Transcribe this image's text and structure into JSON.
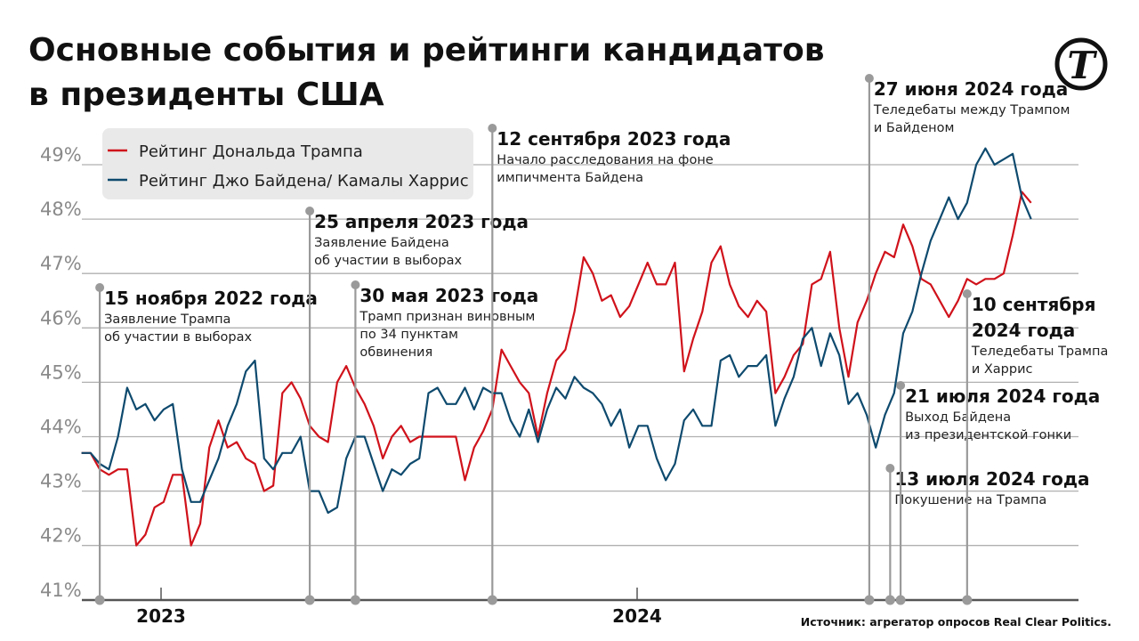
{
  "title_lines": [
    "Основные события и рейтинги кандидатов",
    "в президенты США"
  ],
  "source": "Источник: агрегатор опросов Real Clear Politics.",
  "logo_letter": "Т",
  "chart_data": {
    "type": "line",
    "title": "Основные события и рейтинги кандидатов в президенты США",
    "xlabel": "",
    "ylabel": "",
    "ylim": [
      41,
      49.5
    ],
    "yticks": [
      41,
      42,
      43,
      44,
      45,
      46,
      47,
      48,
      49
    ],
    "ytick_labels": [
      "41%",
      "42%",
      "43%",
      "44%",
      "45%",
      "46%",
      "47%",
      "48%",
      "49%"
    ],
    "xtick_labels": [
      {
        "date": "2023-07-01",
        "label": "2023"
      },
      {
        "date": "2024-07-01",
        "label": "2024"
      }
    ],
    "grid": true,
    "legend_position": "top-left",
    "x_start": "2022-11-01",
    "x_step_days": 7,
    "series": [
      {
        "name": "Рейтинг Дональда Трампа",
        "color": "#d0121b",
        "values": [
          43.7,
          43.7,
          43.4,
          43.3,
          43.4,
          43.4,
          42.0,
          42.2,
          42.7,
          42.8,
          43.3,
          43.3,
          42.0,
          42.4,
          43.8,
          44.3,
          43.8,
          43.9,
          43.6,
          43.5,
          43.0,
          43.1,
          44.8,
          45.0,
          44.7,
          44.2,
          44.0,
          43.9,
          45.0,
          45.3,
          44.9,
          44.6,
          44.2,
          43.6,
          44.0,
          44.2,
          43.9,
          44.0,
          44.0,
          44.0,
          44.0,
          44.0,
          43.2,
          43.8,
          44.1,
          44.5,
          45.6,
          45.3,
          45.0,
          44.8,
          44.0,
          44.8,
          45.4,
          45.6,
          46.3,
          47.3,
          47.0,
          46.5,
          46.6,
          46.2,
          46.4,
          46.8,
          47.2,
          46.8,
          46.8,
          47.2,
          45.2,
          45.8,
          46.3,
          47.2,
          47.5,
          46.8,
          46.4,
          46.2,
          46.5,
          46.3,
          44.8,
          45.1,
          45.5,
          45.7,
          46.8,
          46.9,
          47.4,
          46.0,
          45.1,
          46.1,
          46.5,
          47.0,
          47.4,
          47.3,
          47.9,
          47.5,
          46.9,
          46.8,
          46.5,
          46.2,
          46.5,
          46.9,
          46.8,
          46.9,
          46.9,
          47.0,
          47.7,
          48.5,
          48.3
        ]
      },
      {
        "name": "Рейтинг Джо Байдена/ Камалы Харрис",
        "color": "#0e4a6e",
        "values": [
          43.7,
          43.7,
          43.5,
          43.4,
          44.0,
          44.9,
          44.5,
          44.6,
          44.3,
          44.5,
          44.6,
          43.4,
          42.8,
          42.8,
          43.2,
          43.6,
          44.2,
          44.6,
          45.2,
          45.4,
          43.6,
          43.4,
          43.7,
          43.7,
          44.0,
          43.0,
          43.0,
          42.6,
          42.7,
          43.6,
          44.0,
          44.0,
          43.5,
          43.0,
          43.4,
          43.3,
          43.5,
          43.6,
          44.8,
          44.9,
          44.6,
          44.6,
          44.9,
          44.5,
          44.9,
          44.8,
          44.8,
          44.3,
          44.0,
          44.5,
          43.9,
          44.5,
          44.9,
          44.7,
          45.1,
          44.9,
          44.8,
          44.6,
          44.2,
          44.5,
          43.8,
          44.2,
          44.2,
          43.6,
          43.2,
          43.5,
          44.3,
          44.5,
          44.2,
          44.2,
          45.4,
          45.5,
          45.1,
          45.3,
          45.3,
          45.5,
          44.2,
          44.7,
          45.1,
          45.8,
          46.0,
          45.3,
          45.9,
          45.5,
          44.6,
          44.8,
          44.4,
          43.8,
          44.4,
          44.8,
          45.9,
          46.3,
          47.0,
          47.6,
          48.0,
          48.4,
          48.0,
          48.3,
          49.0,
          49.3,
          49.0,
          49.1,
          49.2,
          48.4,
          48.0
        ]
      }
    ],
    "events": [
      {
        "date": "2022-11-15",
        "title": [
          "15 ноября 2022 года"
        ],
        "desc": [
          "Заявление Трампа",
          "об участии в выборах"
        ]
      },
      {
        "date": "2023-04-25",
        "title": [
          "25 апреля 2023 года"
        ],
        "desc": [
          "Заявление Байдена",
          "об участии в выборах"
        ]
      },
      {
        "date": "2023-05-30",
        "title": [
          "30 мая 2023 года"
        ],
        "desc": [
          "Трамп признан виновным",
          "по 34 пунктам",
          "обвинения"
        ]
      },
      {
        "date": "2023-09-12",
        "title": [
          "12 сентября 2023 года"
        ],
        "desc": [
          "Начало расследования на фоне",
          "импичмента Байдена"
        ]
      },
      {
        "date": "2024-06-27",
        "title": [
          "27 июня 2024 года"
        ],
        "desc": [
          "Теледебаты между Трампом",
          "и Байденом"
        ]
      },
      {
        "date": "2024-07-13",
        "title": [
          "13 июля 2024 года"
        ],
        "desc": [
          "Покушение на Трампа"
        ]
      },
      {
        "date": "2024-07-21",
        "title": [
          "21 июля 2024 года"
        ],
        "desc": [
          "Выход Байдена",
          "из президентской гонки"
        ]
      },
      {
        "date": "2024-09-10",
        "title": [
          "10 сентября",
          "2024 года"
        ],
        "desc": [
          "Теледебаты Трампа",
          "и Харрис"
        ]
      }
    ]
  }
}
